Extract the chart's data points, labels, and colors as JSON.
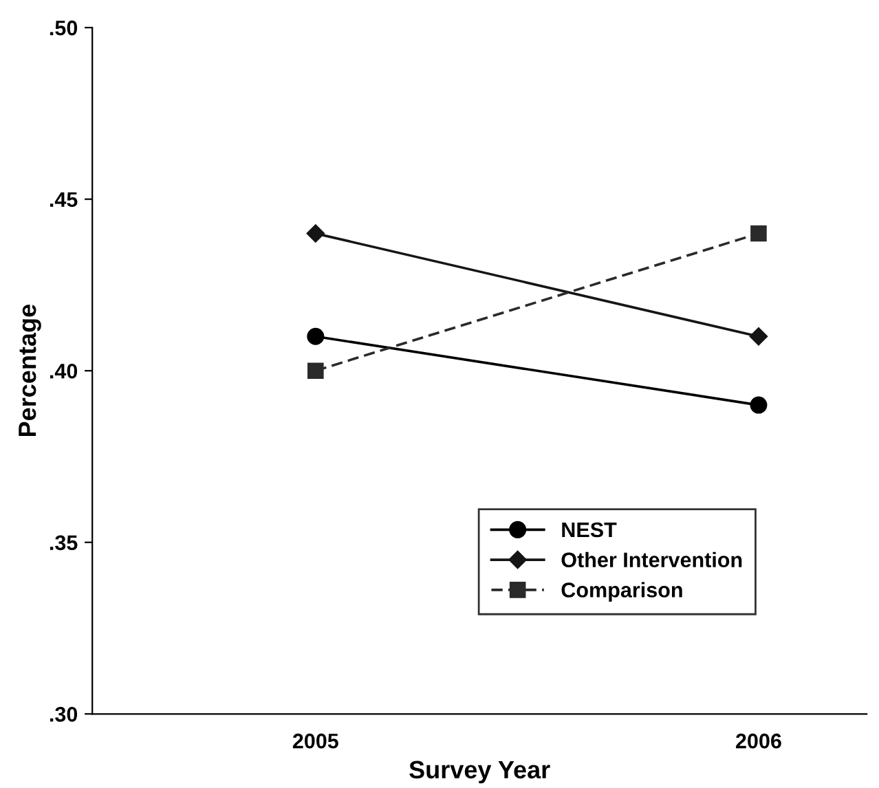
{
  "chart_data": {
    "type": "line",
    "xlabel": "Survey Year",
    "ylabel": "Percentage",
    "categories": [
      "2005",
      "2006"
    ],
    "series": [
      {
        "name": "NEST",
        "color": "#000000",
        "values": [
          0.41,
          0.39
        ],
        "marker": "circle",
        "line_style": "solid"
      },
      {
        "name": "Other Intervention",
        "color": "#151515",
        "values": [
          0.44,
          0.41
        ],
        "marker": "diamond",
        "line_style": "solid"
      },
      {
        "name": "Comparison",
        "color": "#2a2a2a",
        "values": [
          0.4,
          0.44
        ],
        "marker": "square",
        "line_style": "dashed"
      }
    ],
    "ylim": [
      0.3,
      0.5
    ],
    "yticks": [
      {
        "value": 0.3,
        "label": ".30"
      },
      {
        "value": 0.35,
        "label": ".35"
      },
      {
        "value": 0.4,
        "label": ".40"
      },
      {
        "value": 0.45,
        "label": ".45"
      },
      {
        "value": 0.5,
        "label": ".50"
      }
    ],
    "grid": false,
    "legend": "bottom right"
  }
}
